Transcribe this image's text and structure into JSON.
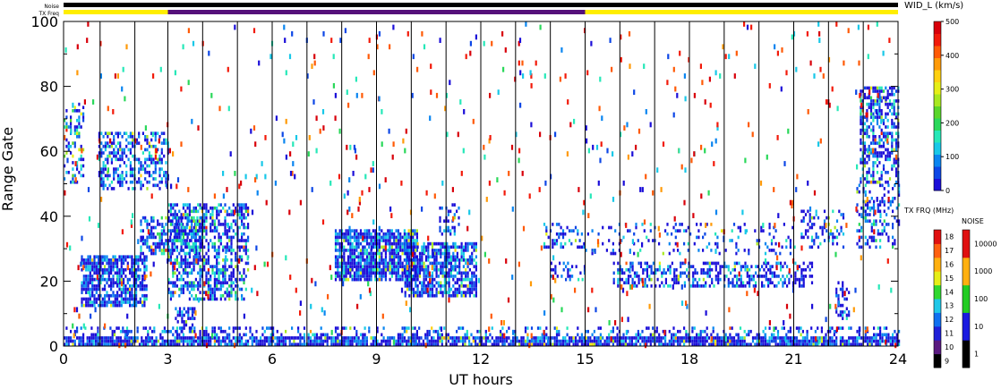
{
  "chart_data": {
    "type": "heatmap",
    "title": "",
    "xlabel": "UT hours",
    "ylabel": "Range Gate",
    "xlim": [
      0,
      24
    ],
    "ylim": [
      0,
      100
    ],
    "x_ticks": [
      0,
      3,
      6,
      9,
      12,
      15,
      18,
      21,
      24
    ],
    "y_ticks": [
      0,
      20,
      40,
      60,
      80,
      100
    ],
    "scan_boundaries_ut": [
      1.05,
      2.05,
      3.0,
      4.0,
      5.0,
      6.0,
      7.0,
      8.0,
      9.0,
      10.0,
      11.0,
      12.0,
      13.0,
      14.0,
      15.0,
      16.0,
      17.0,
      18.0,
      19.0,
      20.0,
      21.0,
      22.0,
      23.0
    ],
    "status_bars": {
      "noise_label": "Noise",
      "freq_label": "TX Freq",
      "noise_color": "#000000",
      "freq_segments": [
        {
          "start": 0,
          "end": 3,
          "color": "#ffee00"
        },
        {
          "start": 3,
          "end": 15,
          "color": "#55117a"
        },
        {
          "start": 15,
          "end": 24,
          "color": "#ffee00"
        }
      ]
    },
    "colorbars": {
      "width": {
        "title": "WID_L (km/s)",
        "ticks": [
          0,
          100,
          200,
          300,
          400,
          500
        ],
        "range": [
          0,
          500
        ],
        "colors": [
          "#1b0ed8",
          "#0d47e6",
          "#0a85f0",
          "#18c8e8",
          "#26e8b8",
          "#2ad85a",
          "#5ad62a",
          "#a8e820",
          "#e6ee18",
          "#ffd010",
          "#ff9a08",
          "#ff5a06",
          "#f21a0a",
          "#d8000a"
        ]
      },
      "tx_freq": {
        "title": "TX FRQ (MHz)",
        "ticks": [
          9,
          10,
          11,
          12,
          13,
          14,
          15,
          16,
          17,
          18
        ],
        "colors": [
          "#000000",
          "#5a1a80",
          "#2020d8",
          "#1070f0",
          "#20c8e8",
          "#30d830",
          "#e6ee18",
          "#ffb010",
          "#ff6010",
          "#e01010"
        ]
      },
      "noise": {
        "title": "NOISE",
        "ticks": [
          "1",
          "10",
          "100",
          "1000",
          "10000"
        ],
        "colors": [
          "#000000",
          "#1a1ae0",
          "#22cc22",
          "#ffb010",
          "#e01010"
        ]
      }
    },
    "echo_regions": [
      {
        "x0": 0.0,
        "x1": 24.0,
        "y0": 0,
        "y1": 3,
        "density": 0.85,
        "wmin": 0,
        "wmax": 130
      },
      {
        "x0": 0.0,
        "x1": 24.0,
        "y0": 3,
        "y1": 6,
        "density": 0.3,
        "wmin": 0,
        "wmax": 160
      },
      {
        "x0": 0.5,
        "x1": 2.4,
        "y0": 12,
        "y1": 28,
        "density": 0.75,
        "wmin": 0,
        "wmax": 150
      },
      {
        "x0": 1.0,
        "x1": 3.0,
        "y0": 48,
        "y1": 66,
        "density": 0.45,
        "wmin": 0,
        "wmax": 170
      },
      {
        "x0": 2.2,
        "x1": 4.0,
        "y0": 28,
        "y1": 40,
        "density": 0.55,
        "wmin": 0,
        "wmax": 200
      },
      {
        "x0": 3.0,
        "x1": 5.3,
        "y0": 14,
        "y1": 44,
        "density": 0.55,
        "wmin": 0,
        "wmax": 200
      },
      {
        "x0": 3.2,
        "x1": 3.8,
        "y0": 4,
        "y1": 12,
        "density": 0.5,
        "wmin": 0,
        "wmax": 120
      },
      {
        "x0": 7.8,
        "x1": 10.2,
        "y0": 20,
        "y1": 36,
        "density": 0.8,
        "wmin": 0,
        "wmax": 160
      },
      {
        "x0": 9.8,
        "x1": 11.9,
        "y0": 15,
        "y1": 32,
        "density": 0.75,
        "wmin": 0,
        "wmax": 160
      },
      {
        "x0": 10.8,
        "x1": 11.4,
        "y0": 34,
        "y1": 44,
        "density": 0.35,
        "wmin": 0,
        "wmax": 150
      },
      {
        "x0": 13.8,
        "x1": 15.0,
        "y0": 30,
        "y1": 38,
        "density": 0.4,
        "wmin": 0,
        "wmax": 150
      },
      {
        "x0": 14.0,
        "x1": 15.0,
        "y0": 20,
        "y1": 26,
        "density": 0.3,
        "wmin": 0,
        "wmax": 150
      },
      {
        "x0": 15.8,
        "x1": 21.5,
        "y0": 18,
        "y1": 26,
        "density": 0.45,
        "wmin": 0,
        "wmax": 170
      },
      {
        "x0": 15.0,
        "x1": 21.0,
        "y0": 28,
        "y1": 38,
        "density": 0.15,
        "wmin": 0,
        "wmax": 170
      },
      {
        "x0": 21.2,
        "x1": 22.4,
        "y0": 30,
        "y1": 42,
        "density": 0.3,
        "wmin": 0,
        "wmax": 160
      },
      {
        "x0": 22.2,
        "x1": 22.6,
        "y0": 8,
        "y1": 20,
        "density": 0.4,
        "wmin": 0,
        "wmax": 150
      },
      {
        "x0": 22.9,
        "x1": 24.0,
        "y0": 50,
        "y1": 80,
        "density": 0.55,
        "wmin": 0,
        "wmax": 200
      },
      {
        "x0": 22.8,
        "x1": 24.0,
        "y0": 30,
        "y1": 50,
        "density": 0.3,
        "wmin": 0,
        "wmax": 200
      },
      {
        "x0": 0.0,
        "x1": 0.6,
        "y0": 50,
        "y1": 75,
        "density": 0.3,
        "wmin": 0,
        "wmax": 300
      }
    ],
    "scatter_density": 0.012
  }
}
